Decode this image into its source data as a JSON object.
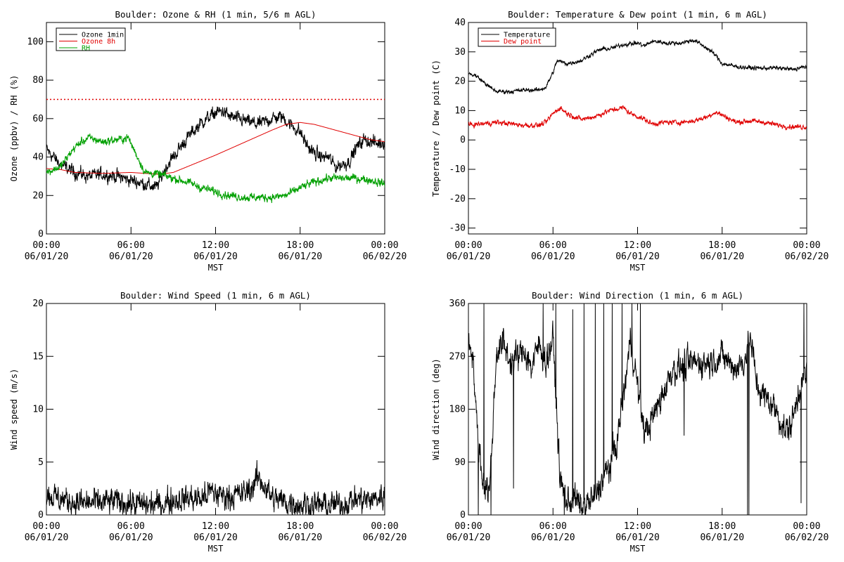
{
  "chart_data": [
    {
      "type": "line",
      "title": "Boulder: Ozone & RH (1 min, 5/6 m AGL)",
      "xlabel": "MST",
      "ylabel": "Ozone (ppbv) / RH (%)",
      "xlim": [
        0,
        24
      ],
      "ylim": [
        0,
        110
      ],
      "yticks": [
        0,
        20,
        40,
        60,
        80,
        100
      ],
      "xticks": [
        {
          "time": "00:00",
          "date": "06/01/20"
        },
        {
          "time": "06:00",
          "date": "06/01/20"
        },
        {
          "time": "12:00",
          "date": "06/01/20"
        },
        {
          "time": "18:00",
          "date": "06/01/20"
        },
        {
          "time": "00:00",
          "date": "06/02/20"
        }
      ],
      "legend": "top-left",
      "reference_line": {
        "y": 70,
        "color": "#e00000",
        "style": "dotted"
      },
      "series": [
        {
          "name": "Ozone 1min",
          "color": "#000000",
          "noise": 2.5,
          "x": [
            0,
            0.5,
            1,
            2,
            3,
            4,
            5,
            6,
            7,
            7.8,
            8.5,
            9,
            10,
            11,
            12,
            12.5,
            13,
            14,
            15,
            16,
            16.7,
            17.3,
            18,
            18.5,
            19,
            19.5,
            20,
            20.5,
            21,
            21.5,
            22,
            22.5,
            23,
            23.5,
            24
          ],
          "y": [
            44,
            40,
            36,
            32,
            30,
            31,
            30,
            28,
            26,
            24,
            35,
            40,
            50,
            58,
            63,
            64,
            61,
            59,
            57,
            60,
            61,
            57,
            53,
            46,
            42,
            40,
            40,
            35,
            36,
            38,
            45,
            49,
            48,
            47,
            48
          ]
        },
        {
          "name": "Ozone 8h",
          "color": "#e00000",
          "noise": 0,
          "x": [
            0,
            1,
            2,
            4,
            6,
            8,
            9,
            10,
            12,
            14,
            16,
            17,
            18,
            19,
            20,
            21,
            22,
            23,
            24
          ],
          "y": [
            34,
            33.5,
            32,
            31.5,
            32,
            31,
            32,
            35,
            41,
            47.5,
            54,
            57,
            58,
            57,
            55,
            53,
            51,
            49,
            48
          ]
        },
        {
          "name": "RH",
          "color": "#00a000",
          "noise": 1.5,
          "x": [
            0,
            1,
            1.5,
            2,
            2.5,
            3,
            4,
            5,
            5.8,
            6.2,
            7,
            8,
            9,
            10,
            11,
            12,
            13,
            14,
            15,
            16,
            17,
            17.5,
            18,
            19,
            20,
            21,
            22,
            23,
            23.5,
            24
          ],
          "y": [
            32,
            35,
            40,
            45,
            48,
            50,
            48,
            49,
            50,
            44,
            32,
            31,
            29,
            27,
            24,
            22,
            20,
            19,
            19,
            19,
            20,
            22,
            24,
            27,
            29,
            29,
            29,
            28,
            27,
            26
          ]
        }
      ]
    },
    {
      "type": "line",
      "title": "Boulder: Temperature & Dew point (1 min, 6 m AGL)",
      "xlabel": "MST",
      "ylabel": "Temperature / Dew point (C)",
      "xlim": [
        0,
        24
      ],
      "ylim": [
        -32,
        40
      ],
      "yticks": [
        -30,
        -20,
        -10,
        0,
        10,
        20,
        30,
        40
      ],
      "xticks": [
        {
          "time": "00:00",
          "date": "06/01/20"
        },
        {
          "time": "06:00",
          "date": "06/01/20"
        },
        {
          "time": "12:00",
          "date": "06/01/20"
        },
        {
          "time": "18:00",
          "date": "06/01/20"
        },
        {
          "time": "00:00",
          "date": "06/02/20"
        }
      ],
      "legend": "top-left",
      "series": [
        {
          "name": "Temperature",
          "color": "#000000",
          "noise": 0.5,
          "x": [
            0,
            0.5,
            1,
            1.5,
            2,
            3,
            4,
            5,
            5.5,
            6,
            6.3,
            7,
            8,
            9,
            9.5,
            10,
            11,
            12,
            12.5,
            13,
            13.5,
            14,
            15,
            16,
            17,
            17.5,
            18,
            19,
            20,
            21,
            22,
            23,
            23.5,
            24
          ],
          "y": [
            22.5,
            22,
            20,
            18,
            16.5,
            16.5,
            17,
            17,
            18,
            23,
            27,
            26,
            27,
            30,
            31,
            31,
            32.5,
            33,
            32,
            33.5,
            33.5,
            33,
            33,
            34,
            31,
            29,
            26,
            25,
            24.5,
            24.5,
            24.5,
            24,
            24.5,
            25
          ]
        },
        {
          "name": "Dew point",
          "color": "#e00000",
          "noise": 0.6,
          "x": [
            0,
            1,
            2,
            3,
            4,
            5,
            5.5,
            6,
            6.5,
            7,
            8,
            9,
            10,
            11,
            11.5,
            12,
            12.5,
            13,
            14,
            15,
            16,
            17,
            17.5,
            18,
            19,
            20,
            21,
            22,
            23,
            24
          ],
          "y": [
            5,
            5.5,
            6,
            5.5,
            5,
            5,
            6,
            9,
            11,
            9,
            7,
            8,
            10,
            11,
            9,
            8,
            7,
            5.5,
            6,
            6,
            6.5,
            8,
            9.5,
            8.5,
            6,
            6.5,
            6,
            5,
            4.5,
            4.5
          ]
        }
      ]
    },
    {
      "type": "line",
      "title": "Boulder: Wind Speed (1 min, 6 m AGL)",
      "xlabel": "MST",
      "ylabel": "Wind speed (m/s)",
      "xlim": [
        0,
        24
      ],
      "ylim": [
        0,
        20
      ],
      "yticks": [
        0,
        5,
        10,
        15,
        20
      ],
      "xticks": [
        {
          "time": "00:00",
          "date": "06/01/20"
        },
        {
          "time": "06:00",
          "date": "06/01/20"
        },
        {
          "time": "12:00",
          "date": "06/01/20"
        },
        {
          "time": "18:00",
          "date": "06/01/20"
        },
        {
          "time": "00:00",
          "date": "06/02/20"
        }
      ],
      "series": [
        {
          "name": "",
          "color": "#000000",
          "noise": 0.9,
          "x": [
            0,
            1,
            2,
            3,
            4,
            5,
            6,
            7,
            8,
            9,
            10,
            11,
            11.5,
            12,
            13,
            14,
            14.5,
            15,
            15.5,
            16,
            17,
            18,
            19,
            20,
            21,
            21.5,
            22,
            23,
            24
          ],
          "y": [
            2,
            1.5,
            1.2,
            1.1,
            1.2,
            1.3,
            1.1,
            0.9,
            1.0,
            1.4,
            1.6,
            1.5,
            2.2,
            2.0,
            1.8,
            2.0,
            2.5,
            3.5,
            2.8,
            1.6,
            1.2,
            1.0,
            1.0,
            0.9,
            1.0,
            1.3,
            1.5,
            1.4,
            1.8
          ]
        }
      ]
    },
    {
      "type": "line",
      "title": "Boulder: Wind Direction (1 min, 6 m AGL)",
      "xlabel": "MST",
      "ylabel": "Wind direction (deg)",
      "xlim": [
        0,
        24
      ],
      "ylim": [
        0,
        360
      ],
      "yticks": [
        0,
        90,
        180,
        270,
        360
      ],
      "xticks": [
        {
          "time": "00:00",
          "date": "06/01/20"
        },
        {
          "time": "06:00",
          "date": "06/01/20"
        },
        {
          "time": "12:00",
          "date": "06/01/20"
        },
        {
          "time": "18:00",
          "date": "06/01/20"
        },
        {
          "time": "00:00",
          "date": "06/02/20"
        }
      ],
      "series": [
        {
          "name": "",
          "color": "#000000",
          "noise": 18,
          "x": [
            0,
            0.3,
            0.6,
            1,
            1.5,
            2,
            2.5,
            3,
            3.5,
            4,
            4.5,
            5,
            5.5,
            6,
            6.5,
            7,
            7.5,
            8,
            8.5,
            9,
            9.5,
            10,
            10.5,
            11,
            11.5,
            12,
            12.5,
            13,
            13.5,
            14,
            14.5,
            15,
            16,
            17,
            18,
            19,
            19.5,
            20,
            20.5,
            21,
            21.5,
            22,
            22.5,
            23,
            23.5,
            24
          ],
          "y": [
            300,
            280,
            150,
            60,
            40,
            280,
            290,
            260,
            270,
            280,
            250,
            290,
            260,
            300,
            60,
            20,
            30,
            10,
            20,
            30,
            60,
            80,
            120,
            200,
            300,
            220,
            140,
            160,
            190,
            220,
            250,
            250,
            260,
            260,
            270,
            250,
            260,
            300,
            220,
            200,
            190,
            170,
            140,
            160,
            220,
            240
          ],
          "spikes": [
            [
              0.7,
              0
            ],
            [
              1.1,
              360
            ],
            [
              1.6,
              0
            ],
            [
              3.2,
              45
            ],
            [
              5.3,
              360
            ],
            [
              6.2,
              360
            ],
            [
              6.8,
              0
            ],
            [
              7.4,
              350
            ],
            [
              8.2,
              360
            ],
            [
              9.0,
              360
            ],
            [
              9.6,
              360
            ],
            [
              10.2,
              360
            ],
            [
              10.9,
              360
            ],
            [
              11.6,
              360
            ],
            [
              12.2,
              360
            ],
            [
              15.3,
              135
            ],
            [
              19.8,
              0
            ],
            [
              19.9,
              0
            ],
            [
              23.6,
              20
            ],
            [
              23.8,
              360
            ]
          ]
        }
      ]
    }
  ]
}
